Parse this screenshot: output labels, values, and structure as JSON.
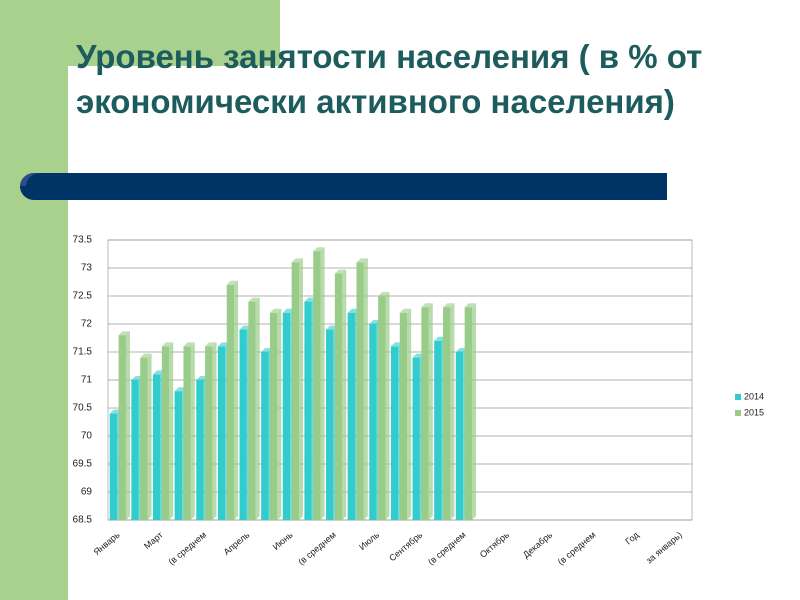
{
  "title": "Уровень занятости населения ( в % от экономически активного населения)",
  "chart_data": {
    "type": "bar",
    "categories": [
      "Январь",
      null,
      "Март",
      null,
      "(в среднем",
      null,
      "Апрель",
      null,
      "Июнь",
      null,
      "(в среднем",
      null,
      "Июль",
      null,
      "Сентябрь",
      null,
      "(в среднем",
      null,
      "Октябрь",
      null,
      "Декабрь",
      null,
      "(в среднем",
      null,
      "Год",
      null,
      "за январь)"
    ],
    "series": [
      {
        "name": "2014",
        "color": "#33cccc",
        "values": [
          70.4,
          71.0,
          71.1,
          70.8,
          71.0,
          71.6,
          71.9,
          71.5,
          72.2,
          72.4,
          71.9,
          72.2,
          72.0,
          71.6,
          71.4,
          71.7,
          71.5,
          null,
          null,
          null,
          null,
          null,
          null,
          null,
          null,
          null,
          null
        ]
      },
      {
        "name": "2015",
        "color": "#99cc88",
        "values": [
          71.8,
          71.4,
          71.6,
          71.6,
          71.6,
          72.7,
          72.4,
          72.2,
          73.1,
          73.3,
          72.9,
          73.1,
          72.5,
          72.2,
          72.3,
          72.3,
          72.3,
          null,
          null,
          null,
          null,
          null,
          null,
          null,
          null,
          null,
          null
        ]
      }
    ],
    "ylim": [
      68.5,
      73.5
    ],
    "yticks": [
      68.5,
      69,
      69.5,
      70,
      70.5,
      71,
      71.5,
      72,
      72.5,
      73,
      73.5
    ],
    "grid": true,
    "legend": "right"
  }
}
